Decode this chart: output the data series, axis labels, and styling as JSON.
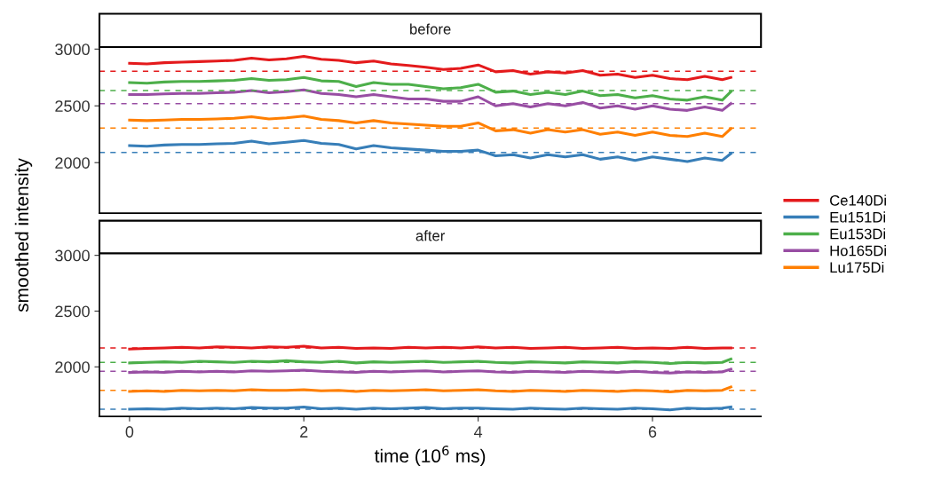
{
  "chart_data": [
    {
      "type": "line",
      "title": "before",
      "ylabel": "smoothed intensity",
      "legend": "right",
      "tick_labels": "y",
      "line_style": "solid",
      "grid": false,
      "xlim": [
        -0.345,
        7.245
      ],
      "ylim": [
        1555,
        3018
      ],
      "yticks": [
        2000,
        2500,
        3000
      ],
      "x": [
        0,
        0.2,
        0.4,
        0.6,
        0.8,
        1.0,
        1.2,
        1.4,
        1.6,
        1.8,
        2.0,
        2.2,
        2.4,
        2.6,
        2.8,
        3.0,
        3.2,
        3.4,
        3.6,
        3.8,
        4.0,
        4.2,
        4.4,
        4.6,
        4.8,
        5.0,
        5.2,
        5.4,
        5.6,
        5.8,
        6.0,
        6.2,
        6.4,
        6.6,
        6.8,
        6.9
      ],
      "series": [
        {
          "name": "Ce140Di",
          "color": "#e41a1c",
          "values": [
            2875,
            2870,
            2880,
            2885,
            2890,
            2895,
            2900,
            2920,
            2905,
            2915,
            2935,
            2910,
            2900,
            2880,
            2895,
            2870,
            2855,
            2840,
            2820,
            2830,
            2860,
            2800,
            2810,
            2780,
            2800,
            2790,
            2810,
            2770,
            2780,
            2750,
            2770,
            2740,
            2730,
            2760,
            2730,
            2750
          ]
        },
        {
          "name": "Eu151Di",
          "color": "#377eb8",
          "values": [
            2150,
            2145,
            2155,
            2160,
            2160,
            2165,
            2170,
            2190,
            2165,
            2180,
            2195,
            2170,
            2160,
            2120,
            2150,
            2130,
            2120,
            2110,
            2100,
            2100,
            2110,
            2060,
            2070,
            2040,
            2070,
            2050,
            2070,
            2030,
            2050,
            2020,
            2050,
            2030,
            2010,
            2040,
            2020,
            2080
          ]
        },
        {
          "name": "Eu153Di",
          "color": "#4daf4a",
          "values": [
            2705,
            2700,
            2710,
            2715,
            2715,
            2720,
            2725,
            2740,
            2725,
            2730,
            2750,
            2720,
            2715,
            2670,
            2705,
            2690,
            2690,
            2670,
            2650,
            2660,
            2690,
            2620,
            2630,
            2600,
            2620,
            2600,
            2630,
            2590,
            2600,
            2570,
            2590,
            2560,
            2550,
            2580,
            2550,
            2625
          ]
        },
        {
          "name": "Ho165Di",
          "color": "#984ea3",
          "values": [
            2600,
            2600,
            2605,
            2610,
            2610,
            2615,
            2620,
            2635,
            2615,
            2625,
            2640,
            2610,
            2600,
            2580,
            2600,
            2580,
            2560,
            2560,
            2540,
            2540,
            2580,
            2500,
            2520,
            2490,
            2520,
            2500,
            2530,
            2480,
            2500,
            2470,
            2500,
            2470,
            2460,
            2490,
            2460,
            2520
          ]
        },
        {
          "name": "Lu175Di",
          "color": "#ff7f00",
          "values": [
            2375,
            2370,
            2375,
            2380,
            2380,
            2385,
            2390,
            2405,
            2385,
            2395,
            2410,
            2380,
            2370,
            2350,
            2370,
            2350,
            2340,
            2330,
            2320,
            2320,
            2350,
            2280,
            2290,
            2260,
            2290,
            2270,
            2290,
            2250,
            2270,
            2240,
            2270,
            2240,
            2230,
            2260,
            2230,
            2300
          ]
        }
      ],
      "ref_lines": [
        {
          "axis": "y",
          "value": 2805,
          "color": "#e41a1c",
          "line_style": "dashed"
        },
        {
          "axis": "y",
          "value": 2090,
          "color": "#377eb8",
          "line_style": "dashed"
        },
        {
          "axis": "y",
          "value": 2635,
          "color": "#4daf4a",
          "line_style": "dashed"
        },
        {
          "axis": "y",
          "value": 2520,
          "color": "#984ea3",
          "line_style": "dashed"
        },
        {
          "axis": "y",
          "value": 2305,
          "color": "#ff7f00",
          "line_style": "dashed"
        }
      ]
    },
    {
      "type": "line",
      "title": "after",
      "xlabel": "time (10$^{6}$ ms)",
      "line_style": "solid",
      "grid": false,
      "xlim": [
        -0.345,
        7.245
      ],
      "xticks": [
        0,
        2,
        4,
        6
      ],
      "ylim": [
        1555,
        3018
      ],
      "yticks": [
        2000,
        2500,
        3000
      ],
      "x": [
        0,
        0.2,
        0.4,
        0.6,
        0.8,
        1.0,
        1.2,
        1.4,
        1.6,
        1.8,
        2.0,
        2.2,
        2.4,
        2.6,
        2.8,
        3.0,
        3.2,
        3.4,
        3.6,
        3.8,
        4.0,
        4.2,
        4.4,
        4.6,
        4.8,
        5.0,
        5.2,
        5.4,
        5.6,
        5.8,
        6.0,
        6.2,
        6.4,
        6.6,
        6.8,
        6.9
      ],
      "series": [
        {
          "name": "Ce140Di",
          "color": "#e41a1c",
          "values": [
            2160,
            2165,
            2170,
            2175,
            2170,
            2180,
            2175,
            2170,
            2180,
            2175,
            2185,
            2170,
            2175,
            2165,
            2170,
            2165,
            2175,
            2170,
            2175,
            2170,
            2180,
            2170,
            2175,
            2165,
            2170,
            2175,
            2165,
            2170,
            2175,
            2165,
            2170,
            2165,
            2175,
            2165,
            2170,
            2170
          ]
        },
        {
          "name": "Eu151Di",
          "color": "#377eb8",
          "values": [
            1620,
            1625,
            1620,
            1630,
            1625,
            1630,
            1625,
            1635,
            1630,
            1630,
            1640,
            1625,
            1630,
            1620,
            1630,
            1625,
            1630,
            1635,
            1625,
            1630,
            1630,
            1625,
            1620,
            1630,
            1625,
            1620,
            1630,
            1625,
            1620,
            1630,
            1625,
            1615,
            1630,
            1625,
            1630,
            1640
          ]
        },
        {
          "name": "Eu153Di",
          "color": "#4daf4a",
          "values": [
            2035,
            2040,
            2045,
            2040,
            2050,
            2045,
            2040,
            2050,
            2045,
            2055,
            2045,
            2040,
            2050,
            2035,
            2045,
            2040,
            2045,
            2050,
            2040,
            2045,
            2050,
            2040,
            2035,
            2045,
            2040,
            2035,
            2045,
            2040,
            2035,
            2045,
            2040,
            2030,
            2040,
            2035,
            2040,
            2070
          ]
        },
        {
          "name": "Ho165Di",
          "color": "#984ea3",
          "values": [
            1950,
            1955,
            1950,
            1960,
            1955,
            1960,
            1955,
            1965,
            1960,
            1965,
            1970,
            1960,
            1955,
            1950,
            1960,
            1955,
            1960,
            1965,
            1955,
            1960,
            1965,
            1955,
            1950,
            1960,
            1955,
            1950,
            1960,
            1955,
            1950,
            1960,
            1950,
            1945,
            1955,
            1950,
            1955,
            1980
          ]
        },
        {
          "name": "Lu175Di",
          "color": "#ff7f00",
          "values": [
            1780,
            1785,
            1780,
            1790,
            1785,
            1790,
            1785,
            1795,
            1790,
            1790,
            1795,
            1785,
            1790,
            1780,
            1790,
            1785,
            1790,
            1795,
            1785,
            1790,
            1795,
            1785,
            1780,
            1790,
            1785,
            1780,
            1790,
            1785,
            1780,
            1790,
            1785,
            1775,
            1790,
            1785,
            1790,
            1820
          ]
        }
      ],
      "ref_lines": [
        {
          "axis": "y",
          "value": 2170,
          "color": "#e41a1c",
          "line_style": "dashed"
        },
        {
          "axis": "y",
          "value": 1621,
          "color": "#377eb8",
          "line_style": "dashed"
        },
        {
          "axis": "y",
          "value": 2040,
          "color": "#4daf4a",
          "line_style": "dashed"
        },
        {
          "axis": "y",
          "value": 1960,
          "color": "#984ea3",
          "line_style": "dashed"
        },
        {
          "axis": "y",
          "value": 1790,
          "color": "#ff7f00",
          "line_style": "dashed"
        }
      ]
    }
  ]
}
